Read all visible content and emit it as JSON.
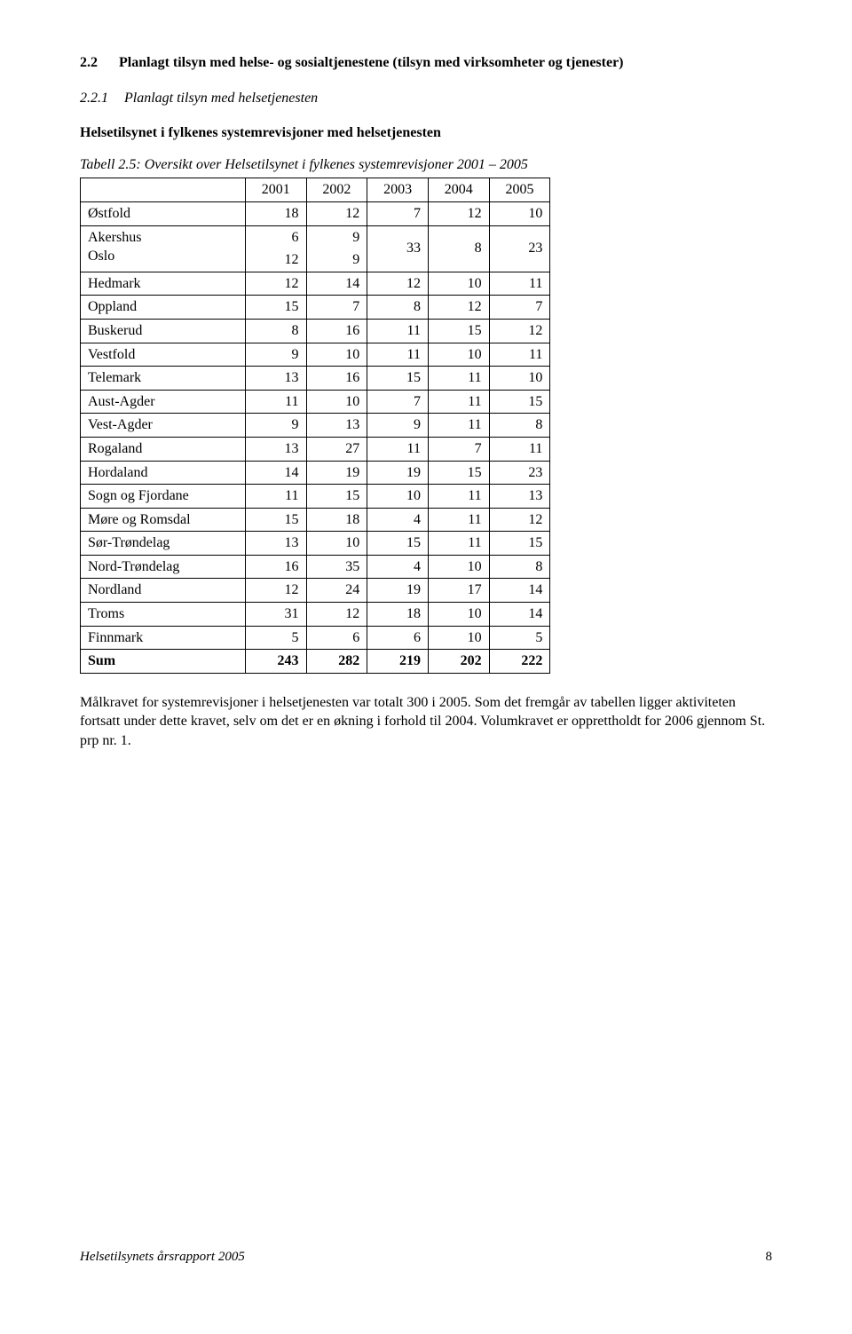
{
  "section": {
    "num": "2.2",
    "title": "Planlagt tilsyn med helse- og sosialtjenestene (tilsyn med virksomheter og tjenester)"
  },
  "subsection": {
    "num": "2.2.1",
    "title": "Planlagt tilsyn med helsetjenesten"
  },
  "subheading": "Helsetilsynet i fylkenes systemrevisjoner med helsetjenesten",
  "table_caption": "Tabell 2.5: Oversikt over Helsetilsynet i fylkenes systemrevisjoner 2001 – 2005",
  "table": {
    "headers": [
      "2001",
      "2002",
      "2003",
      "2004",
      "2005"
    ],
    "rows": [
      {
        "label": "Østfold",
        "cells": [
          "18",
          "12",
          "7",
          "12",
          "10"
        ]
      }
    ],
    "merged_row": {
      "labels": [
        "Akershus",
        "Oslo"
      ],
      "col1": [
        "6",
        "12"
      ],
      "col2": [
        "9",
        "9"
      ],
      "merged": [
        "33",
        "8",
        "23"
      ]
    },
    "rows2": [
      {
        "label": "Hedmark",
        "cells": [
          "12",
          "14",
          "12",
          "10",
          "11"
        ]
      },
      {
        "label": "Oppland",
        "cells": [
          "15",
          "7",
          "8",
          "12",
          "7"
        ]
      },
      {
        "label": "Buskerud",
        "cells": [
          "8",
          "16",
          "11",
          "15",
          "12"
        ]
      },
      {
        "label": "Vestfold",
        "cells": [
          "9",
          "10",
          "11",
          "10",
          "11"
        ]
      },
      {
        "label": "Telemark",
        "cells": [
          "13",
          "16",
          "15",
          "11",
          "10"
        ]
      },
      {
        "label": "Aust-Agder",
        "cells": [
          "11",
          "10",
          "7",
          "11",
          "15"
        ]
      },
      {
        "label": "Vest-Agder",
        "cells": [
          "9",
          "13",
          "9",
          "11",
          "8"
        ]
      },
      {
        "label": "Rogaland",
        "cells": [
          "13",
          "27",
          "11",
          "7",
          "11"
        ]
      },
      {
        "label": "Hordaland",
        "cells": [
          "14",
          "19",
          "19",
          "15",
          "23"
        ]
      },
      {
        "label": "Sogn og Fjordane",
        "cells": [
          "11",
          "15",
          "10",
          "11",
          "13"
        ]
      },
      {
        "label": "Møre og Romsdal",
        "cells": [
          "15",
          "18",
          "4",
          "11",
          "12"
        ]
      },
      {
        "label": "Sør-Trøndelag",
        "cells": [
          "13",
          "10",
          "15",
          "11",
          "15"
        ]
      },
      {
        "label": "Nord-Trøndelag",
        "cells": [
          "16",
          "35",
          "4",
          "10",
          "8"
        ]
      },
      {
        "label": "Nordland",
        "cells": [
          "12",
          "24",
          "19",
          "17",
          "14"
        ]
      },
      {
        "label": "Troms",
        "cells": [
          "31",
          "12",
          "18",
          "10",
          "14"
        ]
      },
      {
        "label": "Finnmark",
        "cells": [
          "5",
          "6",
          "6",
          "10",
          "5"
        ]
      }
    ],
    "sum": {
      "label": "Sum",
      "cells": [
        "243",
        "282",
        "219",
        "202",
        "222"
      ]
    }
  },
  "paragraph": "Målkravet for systemrevisjoner i helsetjenesten var totalt 300 i 2005. Som det fremgår av tabellen ligger aktiviteten fortsatt under dette kravet, selv om det er en økning i forhold til 2004. Volumkravet er opprettholdt for 2006 gjennom St. prp nr. 1.",
  "footer": {
    "left": "Helsetilsynets årsrapport 2005",
    "page": "8"
  }
}
